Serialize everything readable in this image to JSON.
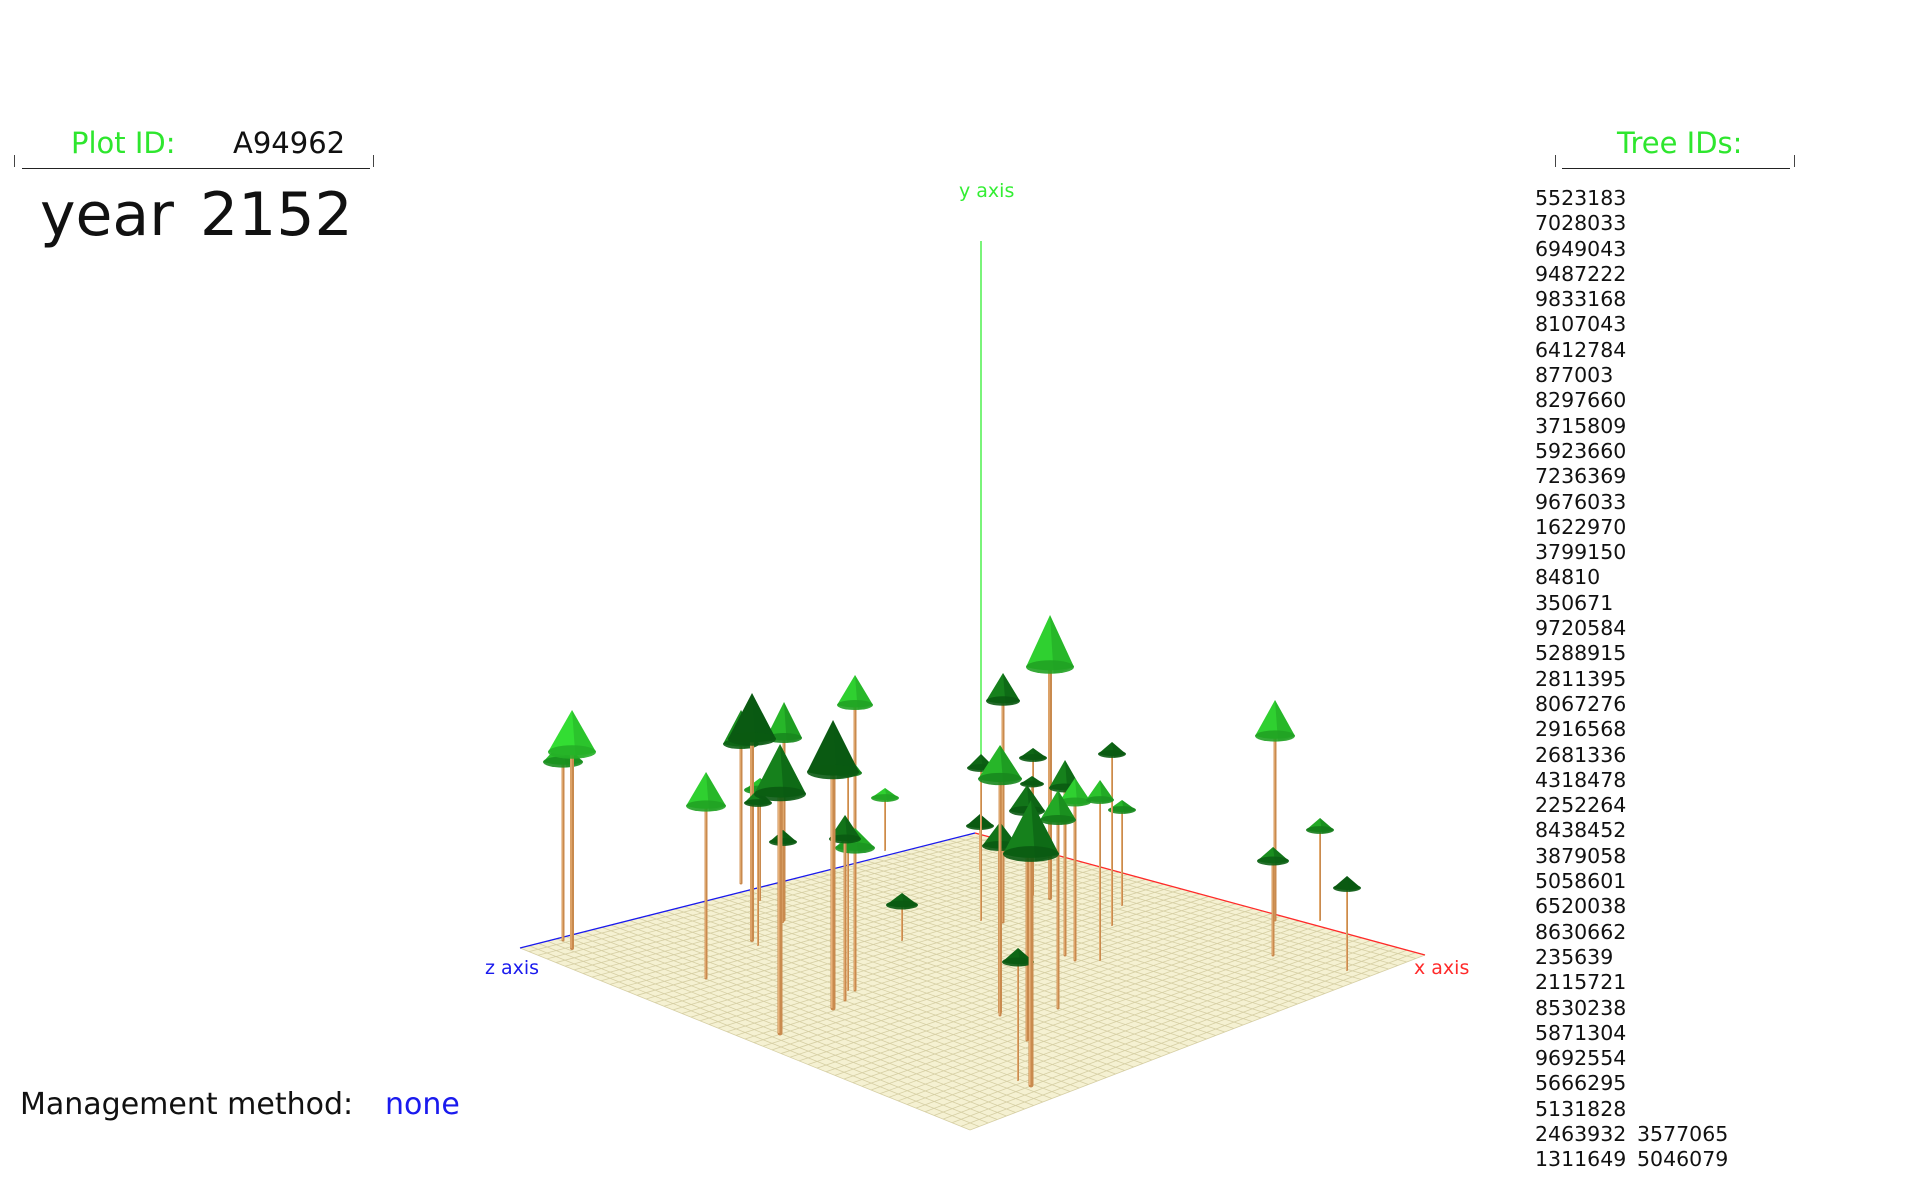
{
  "plot_panel": {
    "plot_id_label": "Plot ID:",
    "plot_id_value": "A94962",
    "year_label": "year",
    "year_value": "2152"
  },
  "tree_panel": {
    "title": "Tree IDs:",
    "rows": [
      [
        "5523183",
        ""
      ],
      [
        "7028033",
        ""
      ],
      [
        "6949043",
        ""
      ],
      [
        "9487222",
        ""
      ],
      [
        "9833168",
        ""
      ],
      [
        "8107043",
        ""
      ],
      [
        "6412784",
        ""
      ],
      [
        "877003",
        ""
      ],
      [
        "8297660",
        ""
      ],
      [
        "3715809",
        ""
      ],
      [
        "5923660",
        ""
      ],
      [
        "7236369",
        ""
      ],
      [
        "9676033",
        ""
      ],
      [
        "1622970",
        ""
      ],
      [
        "3799150",
        ""
      ],
      [
        "84810",
        ""
      ],
      [
        "350671",
        ""
      ],
      [
        "9720584",
        ""
      ],
      [
        "5288915",
        ""
      ],
      [
        "2811395",
        ""
      ],
      [
        "8067276",
        ""
      ],
      [
        "2916568",
        ""
      ],
      [
        "2681336",
        ""
      ],
      [
        "4318478",
        ""
      ],
      [
        "2252264",
        ""
      ],
      [
        "8438452",
        ""
      ],
      [
        "3879058",
        ""
      ],
      [
        "5058601",
        ""
      ],
      [
        "6520038",
        ""
      ],
      [
        "8630662",
        ""
      ],
      [
        "235639",
        ""
      ],
      [
        "2115721",
        ""
      ],
      [
        "8530238",
        ""
      ],
      [
        "5871304",
        ""
      ],
      [
        "9692554",
        ""
      ],
      [
        "5666295",
        ""
      ],
      [
        "5131828",
        ""
      ],
      [
        "2463932",
        "3577065"
      ],
      [
        "1311649",
        "5046079"
      ]
    ]
  },
  "management": {
    "label": "Management method:",
    "value": "none"
  },
  "scene": {
    "x_axis_label": "x axis",
    "y_axis_label": "y axis",
    "z_axis_label": "z axis",
    "colors": {
      "x_axis": "#ff2a2a",
      "y_axis": "#33ee33",
      "z_axis": "#1a1aee",
      "ground": "#f5f1d2",
      "grid": "#d6cfa4",
      "trunk": "#c98a4e",
      "canopy_light": "#33dd33",
      "canopy_dark": "#0a5a12",
      "label_green": "#2ee62e",
      "management_value": "#1a1aee"
    }
  }
}
